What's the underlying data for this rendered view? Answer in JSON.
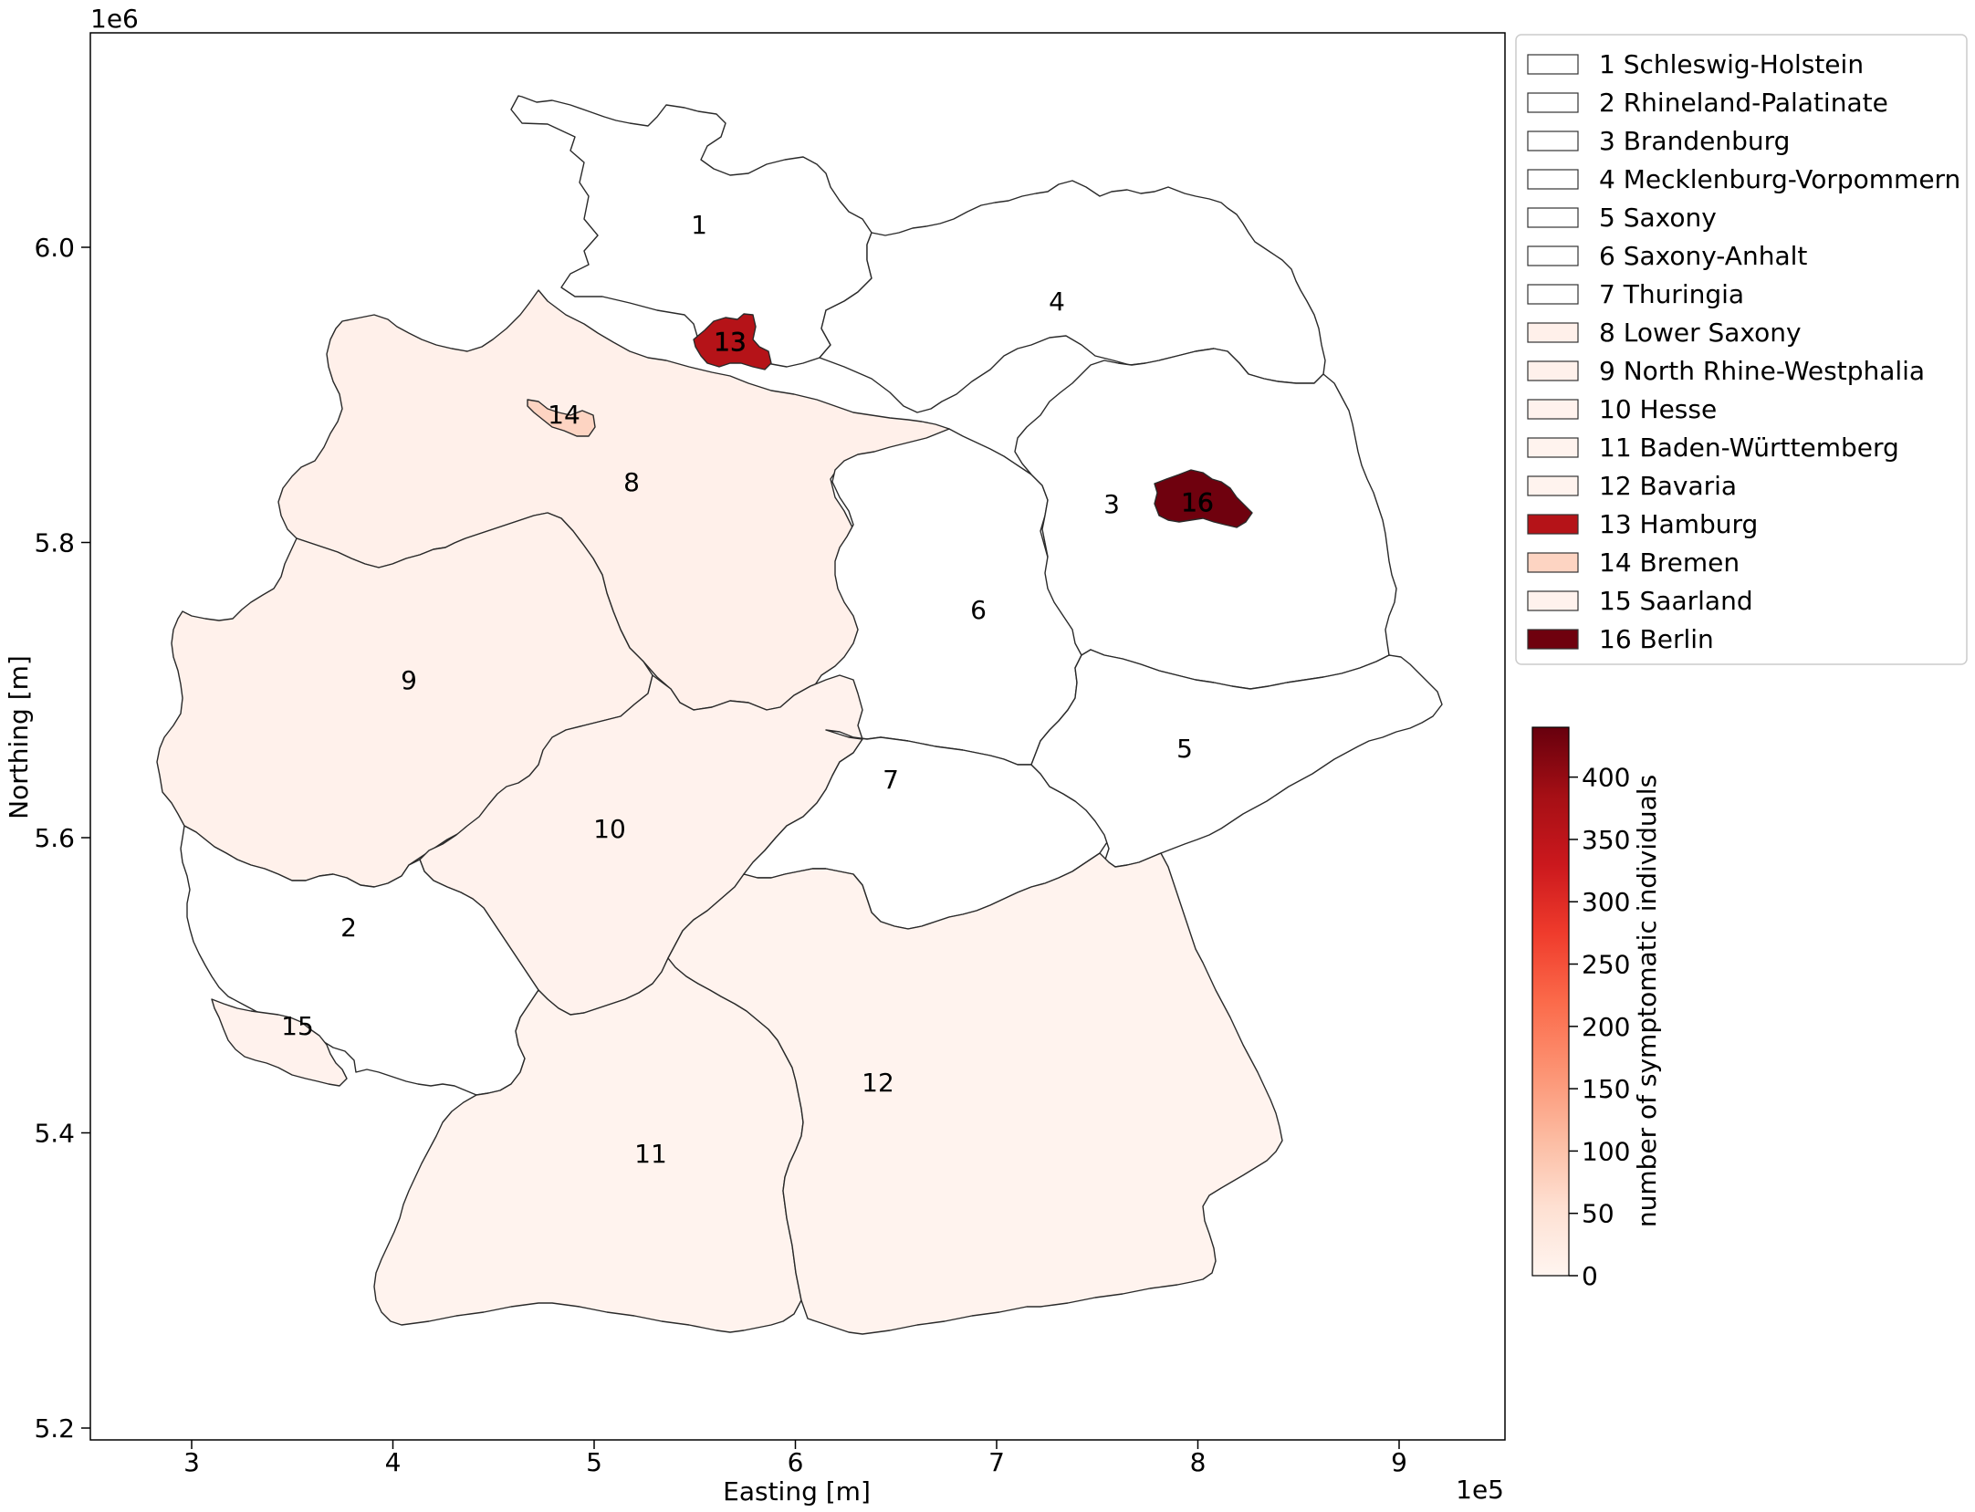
{
  "chart_data": {
    "type": "choropleth",
    "xlabel": "Easting [m]",
    "ylabel": "Northing [m]",
    "x_offset_text": "1e5",
    "y_offset_text": "1e6",
    "x_ticks": [
      "3",
      "4",
      "5",
      "6",
      "7",
      "8",
      "9"
    ],
    "y_ticks": [
      "5.2",
      "5.4",
      "5.6",
      "5.8",
      "6.0"
    ],
    "colorbar": {
      "label": "number of symptomatic individuals",
      "range": [
        0,
        440
      ],
      "ticks": [
        "0",
        "50",
        "100",
        "150",
        "200",
        "250",
        "300",
        "350",
        "400"
      ],
      "colormap": [
        "#fff5f0",
        "#fee0d2",
        "#fcbba1",
        "#fc9272",
        "#fb6a4a",
        "#ef3b2c",
        "#cb181d",
        "#a50f15",
        "#67000d"
      ]
    },
    "legend_position": "upper right, outside plot",
    "regions": [
      {
        "id": "1",
        "name": "1 Schleswig-Holstein",
        "color": "#ffffff",
        "value": 0
      },
      {
        "id": "2",
        "name": "2 Rhineland-Palatinate",
        "color": "#ffffff",
        "value": 0
      },
      {
        "id": "3",
        "name": "3 Brandenburg",
        "color": "#ffffff",
        "value": 0
      },
      {
        "id": "4",
        "name": "4 Mecklenburg-Vorpommern",
        "color": "#ffffff",
        "value": 0
      },
      {
        "id": "5",
        "name": "5 Saxony",
        "color": "#ffffff",
        "value": 0
      },
      {
        "id": "6",
        "name": "6 Saxony-Anhalt",
        "color": "#ffffff",
        "value": 0
      },
      {
        "id": "7",
        "name": "7 Thuringia",
        "color": "#ffffff",
        "value": 0
      },
      {
        "id": "8",
        "name": "8 Lower Saxony",
        "color": "#fff0ea",
        "value": 8
      },
      {
        "id": "9",
        "name": "9 North Rhine-Westphalia",
        "color": "#fff1eb",
        "value": 7
      },
      {
        "id": "10",
        "name": "10 Hesse",
        "color": "#fff2ed",
        "value": 5
      },
      {
        "id": "11",
        "name": "11 Baden-Württemberg",
        "color": "#fff3ee",
        "value": 4
      },
      {
        "id": "12",
        "name": "12 Bavaria",
        "color": "#fff3ee",
        "value": 4
      },
      {
        "id": "13",
        "name": "13 Hamburg",
        "color": "#b51318",
        "value": 370
      },
      {
        "id": "14",
        "name": "14 Bremen",
        "color": "#fdd4c2",
        "value": 45
      },
      {
        "id": "15",
        "name": "15 Saarland",
        "color": "#fff2ed",
        "value": 5
      },
      {
        "id": "16",
        "name": "16 Berlin",
        "color": "#6f010e",
        "value": 435
      }
    ]
  }
}
